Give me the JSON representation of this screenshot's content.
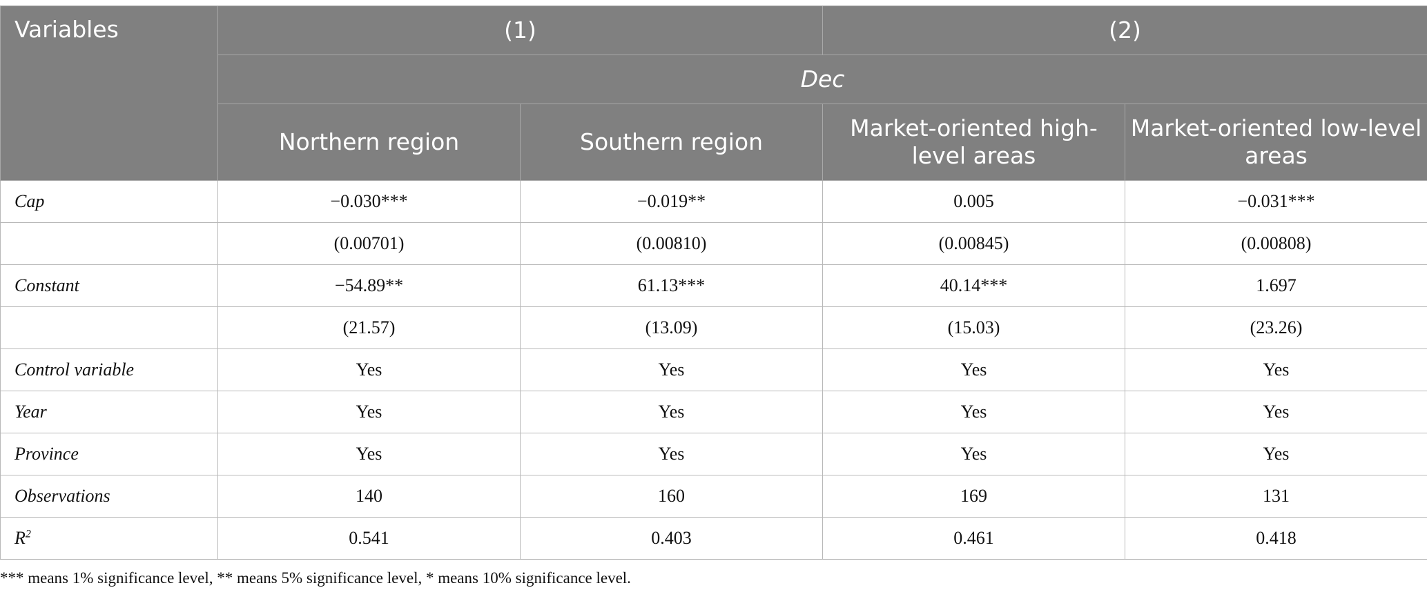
{
  "table": {
    "header": {
      "variables": "Variables",
      "group1": "(1)",
      "group2": "(2)",
      "dependent": "Dec",
      "columns": [
        "Northern region",
        "Southern region",
        "Market-oriented high-level areas",
        "Market-oriented low-level areas"
      ]
    },
    "rows": [
      {
        "label": "Cap",
        "cells": [
          "−0.030***",
          "−0.019**",
          "0.005",
          "−0.031***"
        ]
      },
      {
        "label": "",
        "cells": [
          "(0.00701)",
          "(0.00810)",
          "(0.00845)",
          "(0.00808)"
        ]
      },
      {
        "label": "Constant",
        "cells": [
          "−54.89**",
          "61.13***",
          "40.14***",
          "1.697"
        ]
      },
      {
        "label": "",
        "cells": [
          "(21.57)",
          "(13.09)",
          "(15.03)",
          "(23.26)"
        ]
      },
      {
        "label": "Control variable",
        "cells": [
          "Yes",
          "Yes",
          "Yes",
          "Yes"
        ]
      },
      {
        "label": "Year",
        "cells": [
          "Yes",
          "Yes",
          "Yes",
          "Yes"
        ]
      },
      {
        "label": "Province",
        "cells": [
          "Yes",
          "Yes",
          "Yes",
          "Yes"
        ]
      },
      {
        "label": "Observations",
        "cells": [
          "140",
          "160",
          "169",
          "131"
        ]
      },
      {
        "label": "R",
        "label_sup": "2",
        "cells": [
          "0.541",
          "0.403",
          "0.461",
          "0.418"
        ]
      }
    ]
  },
  "note": "*** means 1% significance level, ** means 5% significance level, * means 10% significance level."
}
